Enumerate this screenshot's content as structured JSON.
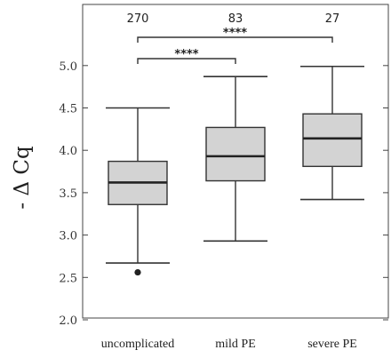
{
  "chart_data": {
    "type": "box",
    "ylabel": "- Δ Cq",
    "ylim": [
      2.0,
      5.6
    ],
    "yticks": [
      2.0,
      2.5,
      3.0,
      3.5,
      4.0,
      4.5,
      5.0
    ],
    "ytick_labels": [
      "2.0",
      "2.5",
      "3.0",
      "3.5",
      "4.0",
      "4.5",
      "5.0"
    ],
    "grid": false,
    "categories": [
      "uncomplicated",
      "mild PE",
      "severe PE"
    ],
    "sample_sizes": [
      "270",
      "83",
      "27"
    ],
    "boxes": [
      {
        "category": "uncomplicated",
        "whisker_low": 2.67,
        "q1": 3.36,
        "median": 3.62,
        "q3": 3.87,
        "whisker_high": 4.5,
        "outliers": [
          2.56
        ]
      },
      {
        "category": "mild PE",
        "whisker_low": 2.93,
        "q1": 3.64,
        "median": 3.93,
        "q3": 4.27,
        "whisker_high": 4.87,
        "outliers": []
      },
      {
        "category": "severe PE",
        "whisker_low": 3.42,
        "q1": 3.81,
        "median": 4.14,
        "q3": 4.43,
        "whisker_high": 4.99,
        "outliers": []
      }
    ],
    "significance": [
      {
        "from": "uncomplicated",
        "to": "mild PE",
        "label": "****"
      },
      {
        "from": "uncomplicated",
        "to": "severe PE",
        "label": "****"
      }
    ],
    "colors": {
      "box_fill": "#d3d3d3",
      "stroke": "#333333"
    }
  }
}
